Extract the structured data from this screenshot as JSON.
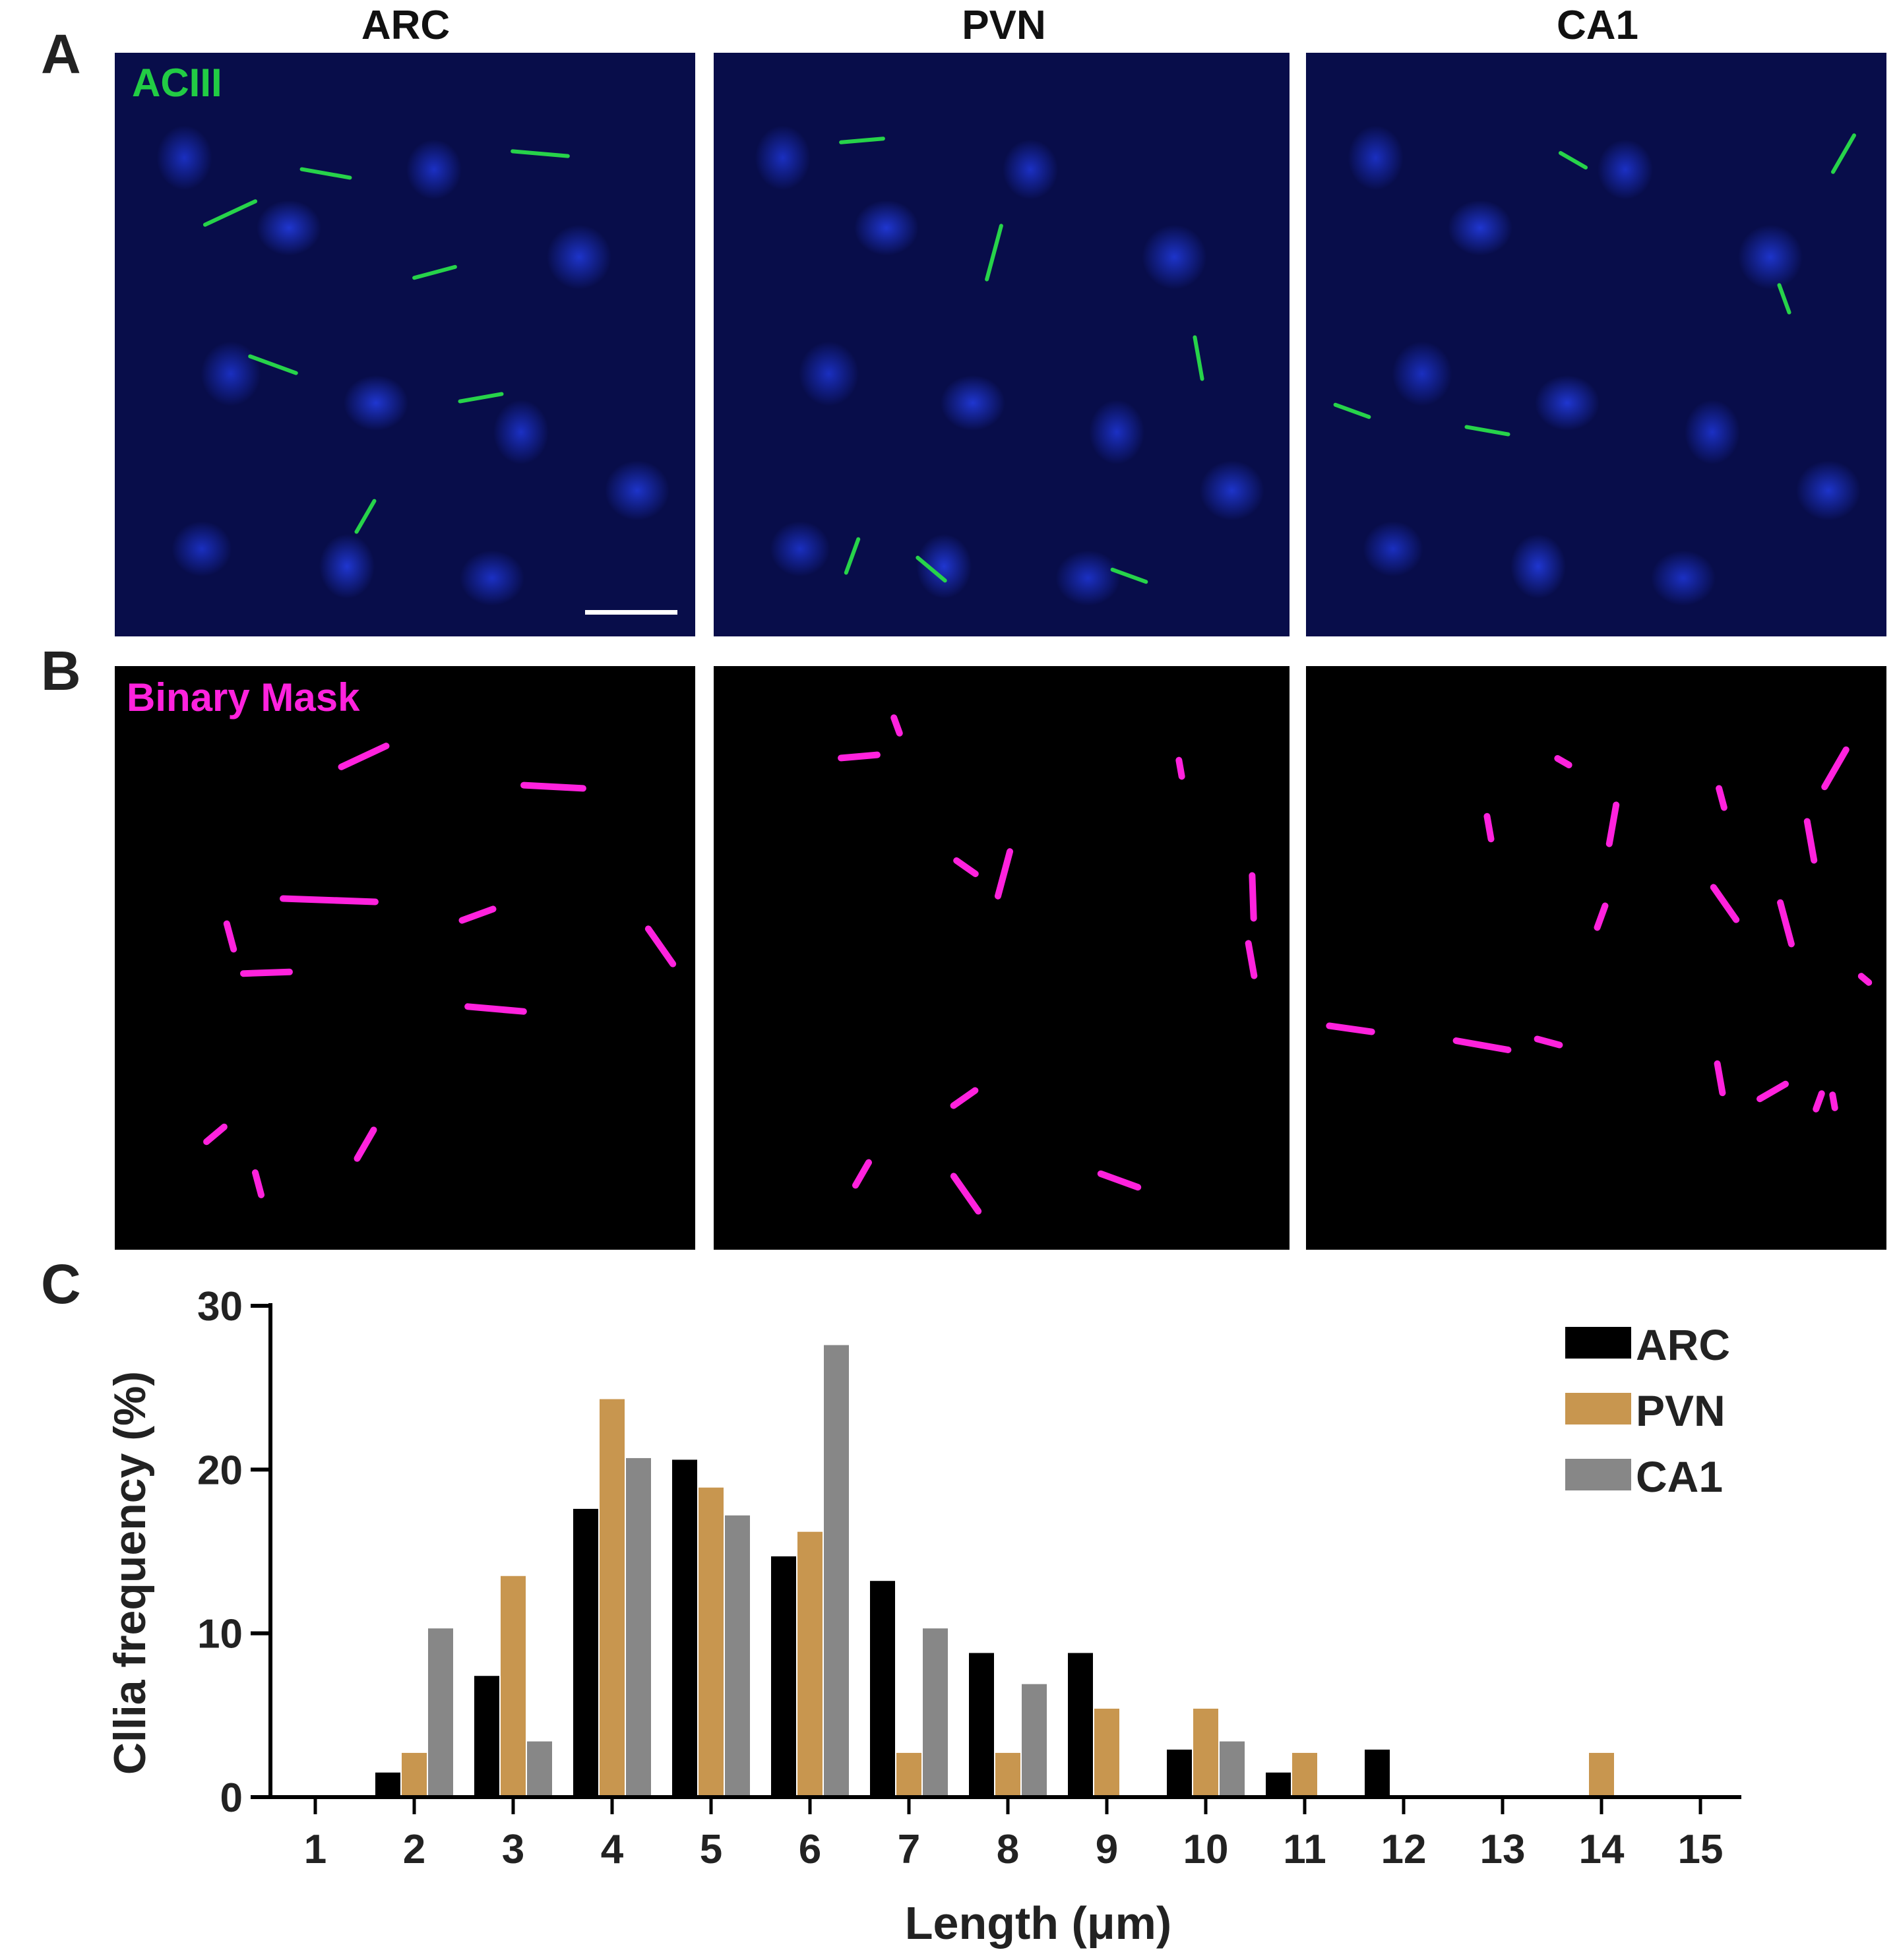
{
  "panels": {
    "a_letter": "A",
    "b_letter": "B",
    "c_letter": "C",
    "columns": [
      "ARC",
      "PVN",
      "CA1"
    ],
    "a_label": "ACIII",
    "b_label": "Binary Mask",
    "a_label_color": "#22cc44",
    "b_label_color": "#ff22dd"
  },
  "chart_data": {
    "type": "bar",
    "xlabel": "Length (μm)",
    "ylabel": "Cllia frequency (%)",
    "categories": [
      "1",
      "2",
      "3",
      "4",
      "5",
      "6",
      "7",
      "8",
      "9",
      "10",
      "11",
      "12",
      "13",
      "14",
      "15"
    ],
    "ylim": [
      0,
      30
    ],
    "yticks": [
      "0",
      "10",
      "20",
      "30"
    ],
    "legend_position": "top-right",
    "series": [
      {
        "name": "ARC",
        "color": "#000000",
        "values": [
          0,
          1.5,
          7.4,
          17.6,
          20.6,
          14.7,
          13.2,
          8.8,
          8.8,
          2.9,
          1.5,
          2.9,
          0,
          0,
          0
        ]
      },
      {
        "name": "PVN",
        "color": "#c8964f",
        "values": [
          0,
          2.7,
          13.5,
          24.3,
          18.9,
          16.2,
          2.7,
          2.7,
          5.4,
          5.4,
          2.7,
          0,
          0,
          2.7,
          0
        ]
      },
      {
        "name": "CA1",
        "color": "#878787",
        "values": [
          0,
          10.3,
          3.4,
          20.7,
          17.2,
          27.6,
          10.3,
          6.9,
          0,
          3.4,
          0,
          0,
          0,
          0,
          0
        ]
      }
    ]
  }
}
